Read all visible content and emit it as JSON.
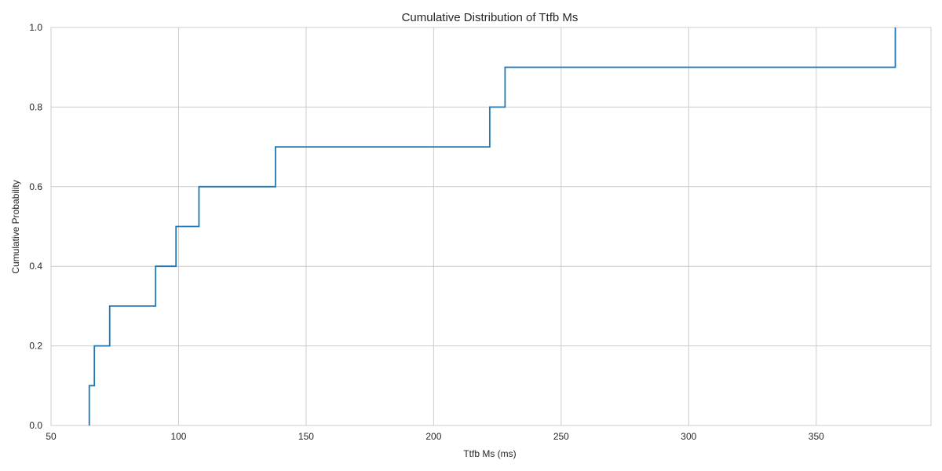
{
  "chart_data": {
    "type": "line",
    "step": true,
    "title": "Cumulative Distribution of Ttfb Ms",
    "xlabel": "Ttfb Ms (ms)",
    "ylabel": "Cumulative Probability",
    "xlim": [
      50,
      395
    ],
    "ylim": [
      0,
      1.0
    ],
    "x_ticks": [
      50,
      100,
      150,
      200,
      250,
      300,
      350
    ],
    "x_tick_labels": [
      "50",
      "100",
      "150",
      "200",
      "250",
      "300",
      "350"
    ],
    "y_ticks": [
      0.0,
      0.2,
      0.4,
      0.6,
      0.8,
      1.0
    ],
    "y_tick_labels": [
      "0.0",
      "0.2",
      "0.4",
      "0.6",
      "0.8",
      "1.0"
    ],
    "grid": true,
    "series": [
      {
        "color": "#1f77b4",
        "x": [
          65,
          67,
          73,
          91,
          99,
          108,
          138,
          222,
          228,
          381
        ],
        "y": [
          0.1,
          0.2,
          0.3,
          0.4,
          0.5,
          0.6,
          0.7,
          0.8,
          0.9,
          1.0
        ]
      }
    ]
  }
}
